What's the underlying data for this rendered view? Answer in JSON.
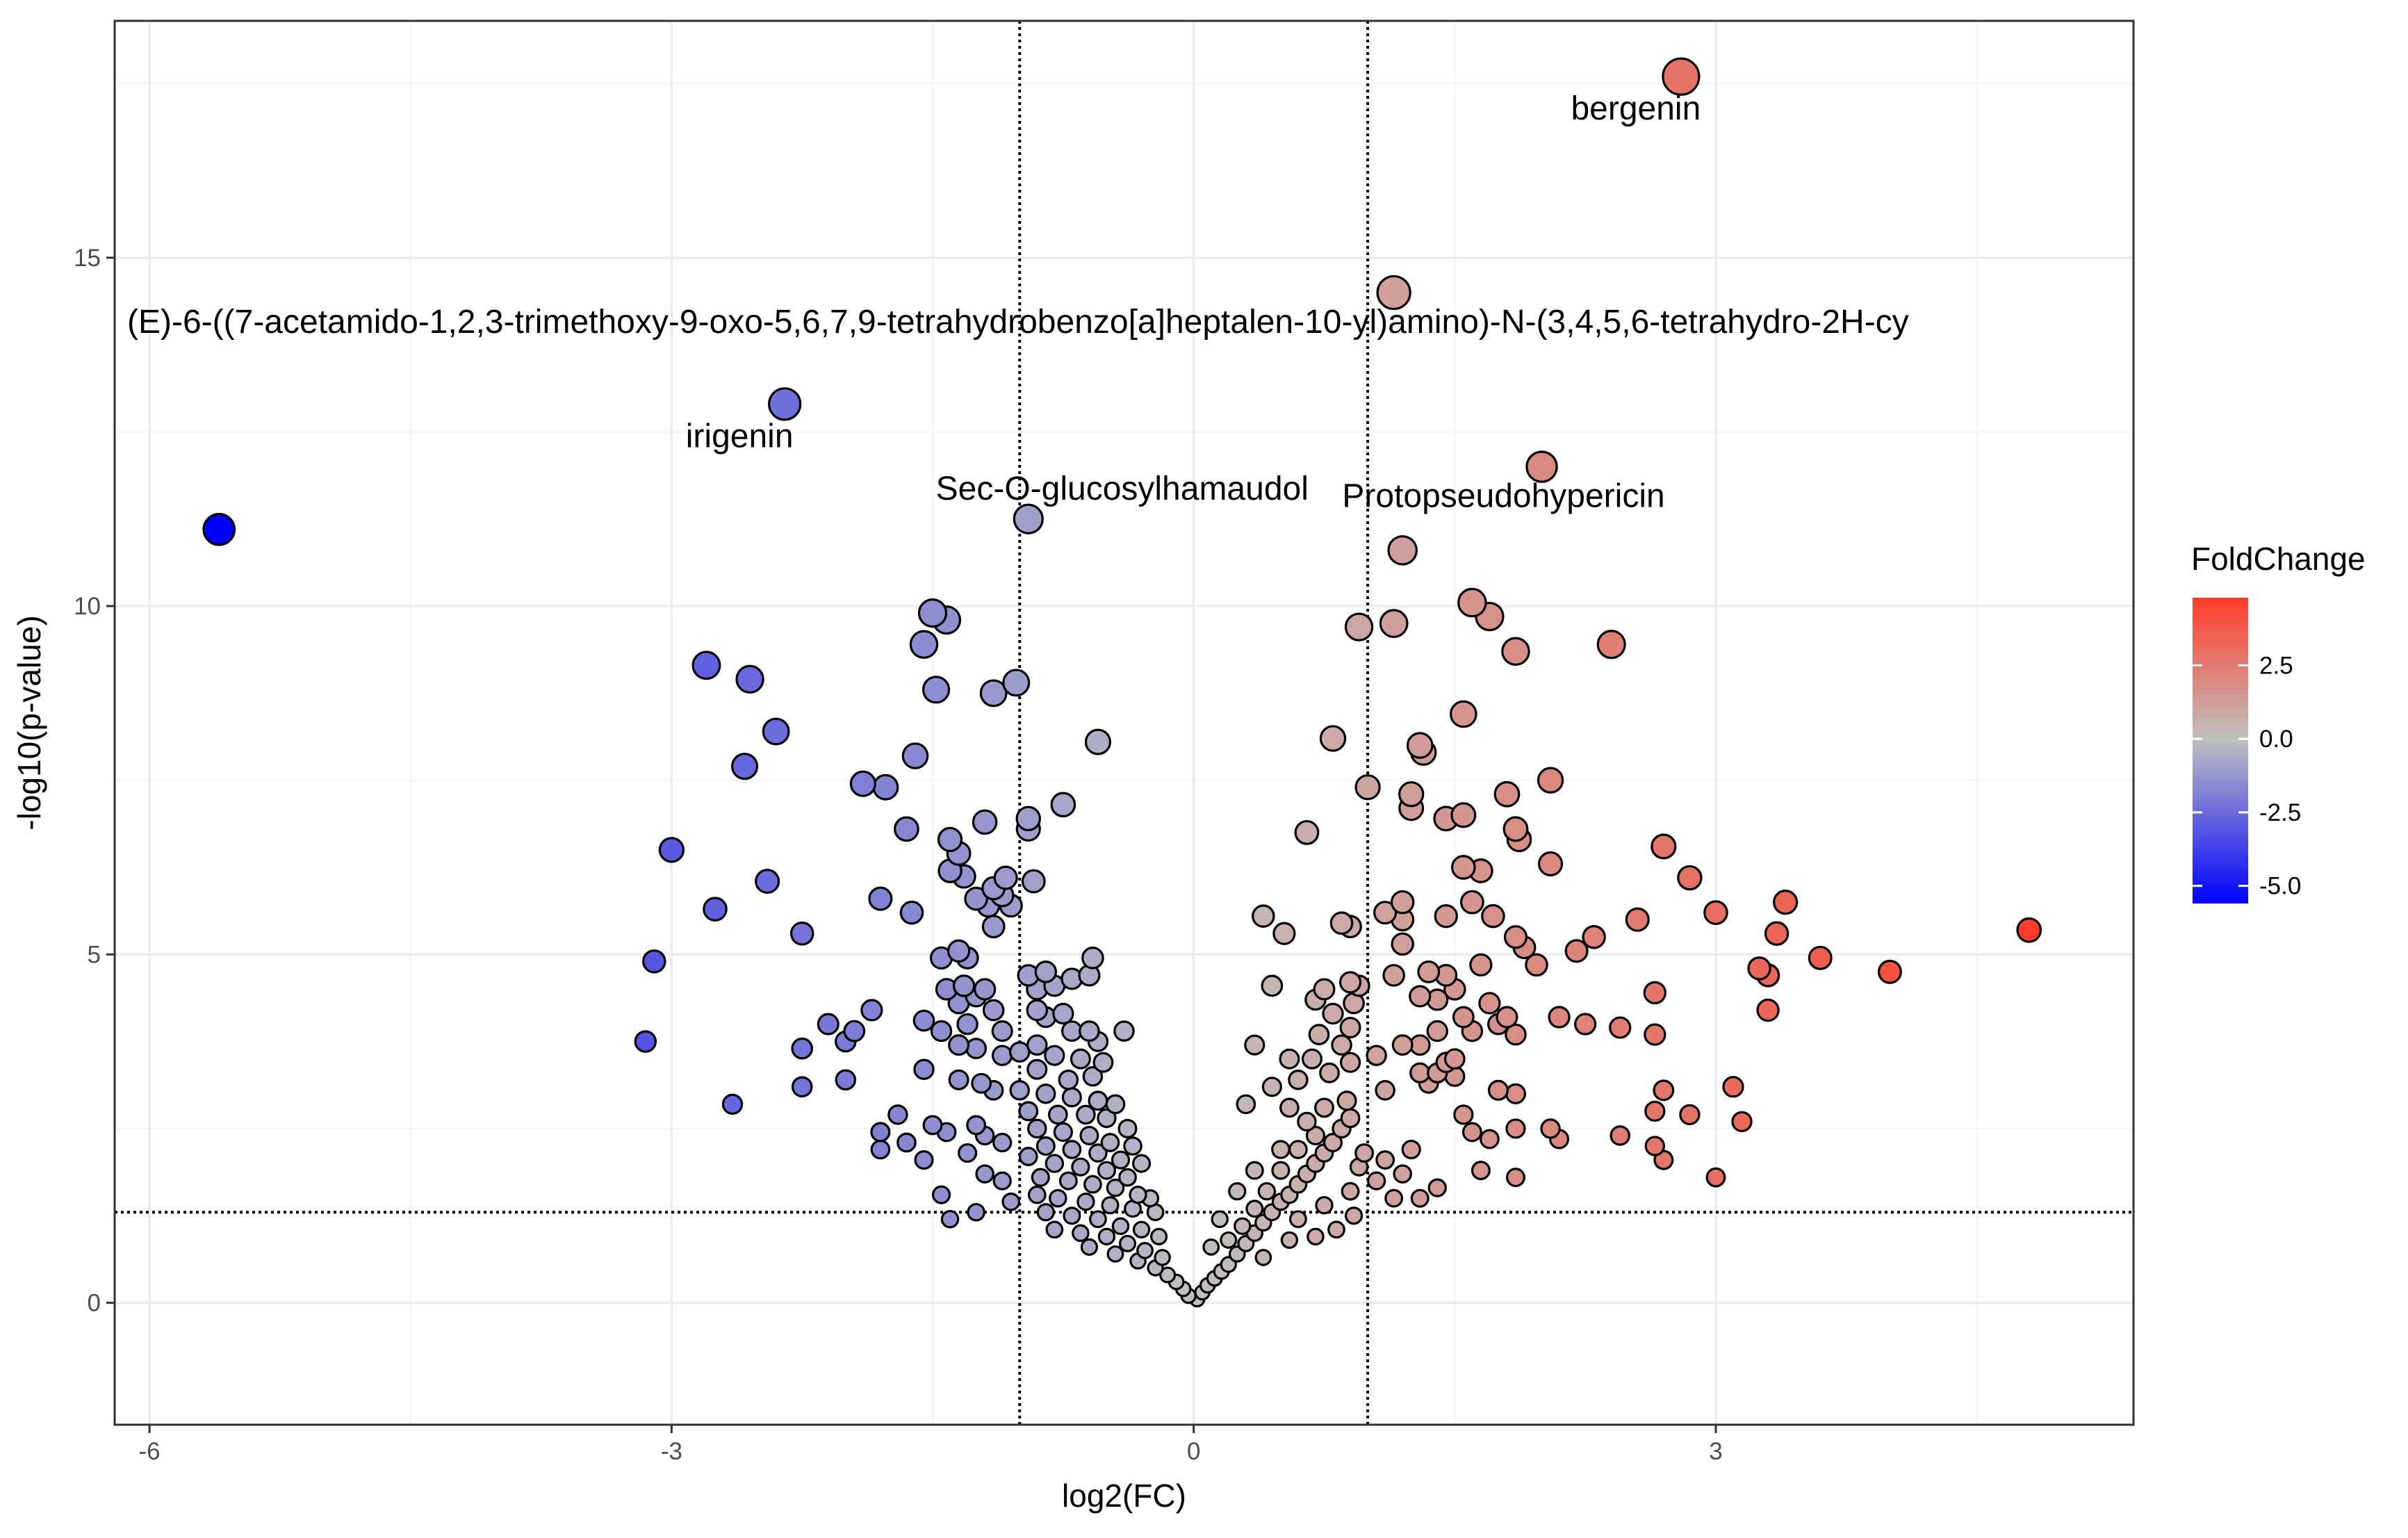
{
  "chart_data": {
    "type": "scatter",
    "title": "",
    "xlabel": "log2(FC)",
    "ylabel": "-log10(p-value)",
    "xlim": [
      -6.2,
      5.4
    ],
    "ylim": [
      -1.75,
      18.4
    ],
    "x_ticks": [
      -6,
      -3,
      0,
      3
    ],
    "y_ticks": [
      0,
      5,
      10,
      15
    ],
    "x_tick_labels": [
      "-6",
      "-3",
      "0",
      "3"
    ],
    "y_tick_labels": [
      "0",
      "5",
      "10",
      "15"
    ],
    "thresholds": {
      "x": [
        -1,
        1
      ],
      "y": 1.3
    },
    "grid": true,
    "legend": {
      "title": "FoldChange",
      "position": "right",
      "range": [
        -5.6,
        4.8
      ],
      "ticks": [
        2.5,
        0.0,
        -2.5,
        -5.0
      ],
      "tick_labels": [
        "2.5",
        "0.0",
        "-2.5",
        "-5.0"
      ],
      "colors": {
        "low": "#0000ff",
        "mid": "#c0c0c0",
        "high": "#ff3c28"
      }
    },
    "labeled_points": [
      {
        "label": "bergenin",
        "x": 2.8,
        "y": 17.6
      },
      {
        "label": "(E)-6-((7-acetamido-1,2,3-trimethoxy-9-oxo-5,6,7,9-tetrahydrobenzo[a]heptalen-10-yl)amino)-N-(3,4,5,6-tetrahydro-2H-cy",
        "x": 1.15,
        "y": 14.5
      },
      {
        "label": "irigenin",
        "x": -2.35,
        "y": 12.9
      },
      {
        "label": "Sec-O-glucosylhamaudol",
        "x": -0.95,
        "y": 11.25
      },
      {
        "label": "Protopseudohypericin",
        "x": 2.0,
        "y": 12.0
      }
    ],
    "points": [
      [
        -5.6,
        11.1
      ],
      [
        2.8,
        17.6
      ],
      [
        1.15,
        14.5
      ],
      [
        -2.35,
        12.9
      ],
      [
        -0.95,
        11.25
      ],
      [
        2.0,
        12.0
      ],
      [
        1.2,
        10.8
      ],
      [
        1.6,
        10.05
      ],
      [
        1.7,
        9.85
      ],
      [
        1.85,
        9.35
      ],
      [
        2.4,
        9.45
      ],
      [
        1.15,
        9.75
      ],
      [
        0.95,
        9.7
      ],
      [
        -1.5,
        9.9
      ],
      [
        -1.42,
        9.8
      ],
      [
        -1.55,
        9.45
      ],
      [
        -1.48,
        8.8
      ],
      [
        -1.15,
        8.75
      ],
      [
        -1.02,
        8.9
      ],
      [
        -2.8,
        9.15
      ],
      [
        -2.55,
        8.95
      ],
      [
        -2.4,
        8.2
      ],
      [
        -2.58,
        7.7
      ],
      [
        -1.6,
        7.85
      ],
      [
        -0.55,
        8.05
      ],
      [
        0.8,
        8.1
      ],
      [
        1.3,
        8.0
      ],
      [
        1.32,
        7.9
      ],
      [
        1.55,
        8.45
      ],
      [
        1.0,
        7.4
      ],
      [
        1.25,
        7.3
      ],
      [
        1.25,
        7.1
      ],
      [
        1.45,
        6.95
      ],
      [
        1.55,
        7.0
      ],
      [
        1.8,
        7.3
      ],
      [
        2.05,
        7.5
      ],
      [
        1.85,
        6.8
      ],
      [
        1.87,
        6.65
      ],
      [
        -1.9,
        7.45
      ],
      [
        -1.77,
        7.4
      ],
      [
        -1.65,
        6.8
      ],
      [
        -1.2,
        6.9
      ],
      [
        -0.95,
        6.95
      ],
      [
        -0.95,
        6.8
      ],
      [
        -0.75,
        7.15
      ],
      [
        0.65,
        6.75
      ],
      [
        2.7,
        6.55
      ],
      [
        2.85,
        6.1
      ],
      [
        2.05,
        6.3
      ],
      [
        1.55,
        6.25
      ],
      [
        1.65,
        6.2
      ],
      [
        -1.4,
        6.65
      ],
      [
        -1.35,
        6.45
      ],
      [
        -1.4,
        6.2
      ],
      [
        -1.32,
        6.12
      ],
      [
        -1.08,
        6.1
      ],
      [
        -0.92,
        6.05
      ],
      [
        -1.15,
        5.95
      ],
      [
        -3.0,
        6.5
      ],
      [
        -2.45,
        6.05
      ],
      [
        -2.75,
        5.65
      ],
      [
        -1.8,
        5.8
      ],
      [
        -1.62,
        5.6
      ],
      [
        -1.25,
        5.8
      ],
      [
        -1.18,
        5.7
      ],
      [
        -1.1,
        5.85
      ],
      [
        -1.05,
        5.7
      ],
      [
        1.2,
        5.75
      ],
      [
        1.6,
        5.75
      ],
      [
        1.72,
        5.55
      ],
      [
        1.45,
        5.55
      ],
      [
        1.1,
        5.6
      ],
      [
        1.2,
        5.5
      ],
      [
        3.0,
        5.6
      ],
      [
        3.4,
        5.75
      ],
      [
        3.35,
        5.3
      ],
      [
        2.55,
        5.5
      ],
      [
        2.3,
        5.25
      ],
      [
        0.4,
        5.55
      ],
      [
        0.52,
        5.3
      ],
      [
        0.85,
        5.45
      ],
      [
        0.9,
        5.4
      ],
      [
        1.2,
        5.15
      ],
      [
        1.85,
        5.25
      ],
      [
        1.9,
        5.1
      ],
      [
        -2.25,
        5.3
      ],
      [
        -1.15,
        5.4
      ],
      [
        -1.35,
        5.05
      ],
      [
        -1.3,
        4.95
      ],
      [
        -1.45,
        4.95
      ],
      [
        -3.1,
        4.9
      ],
      [
        2.2,
        5.05
      ],
      [
        1.97,
        4.85
      ],
      [
        3.25,
        4.8
      ],
      [
        3.3,
        4.7
      ],
      [
        3.6,
        4.95
      ],
      [
        4.0,
        4.75
      ],
      [
        4.8,
        5.35
      ],
      [
        -1.42,
        4.5
      ],
      [
        -1.32,
        4.55
      ],
      [
        -1.25,
        4.4
      ],
      [
        -1.35,
        4.3
      ],
      [
        -1.15,
        4.2
      ],
      [
        -1.2,
        4.5
      ],
      [
        0.45,
        4.55
      ],
      [
        0.7,
        4.35
      ],
      [
        0.9,
        4.6
      ],
      [
        1.15,
        4.7
      ],
      [
        1.3,
        4.4
      ],
      [
        1.4,
        4.35
      ],
      [
        1.5,
        4.5
      ],
      [
        1.7,
        4.3
      ],
      [
        1.8,
        4.1
      ],
      [
        1.55,
        4.1
      ],
      [
        1.35,
        4.75
      ],
      [
        1.45,
        4.7
      ],
      [
        1.65,
        4.85
      ],
      [
        -1.85,
        4.2
      ],
      [
        -2.1,
        4.0
      ],
      [
        -1.95,
        3.9
      ],
      [
        -2.0,
        3.75
      ],
      [
        -2.25,
        3.65
      ],
      [
        -1.55,
        4.05
      ],
      [
        -1.45,
        3.9
      ],
      [
        -1.3,
        4.0
      ],
      [
        -1.1,
        3.9
      ],
      [
        -1.0,
        3.6
      ],
      [
        -1.1,
        3.55
      ],
      [
        -1.25,
        3.65
      ],
      [
        -1.35,
        3.7
      ],
      [
        2.65,
        4.45
      ],
      [
        2.45,
        3.95
      ],
      [
        2.25,
        4.0
      ],
      [
        3.3,
        4.2
      ],
      [
        2.65,
        3.85
      ],
      [
        2.1,
        4.1
      ],
      [
        1.75,
        4.0
      ],
      [
        1.85,
        3.85
      ],
      [
        1.6,
        3.9
      ],
      [
        1.4,
        3.9
      ],
      [
        1.3,
        3.7
      ],
      [
        1.2,
        3.7
      ],
      [
        1.05,
        3.55
      ],
      [
        1.3,
        3.3
      ],
      [
        1.5,
        3.5
      ],
      [
        1.45,
        3.45
      ],
      [
        1.4,
        3.3
      ],
      [
        0.35,
        3.7
      ],
      [
        0.55,
        3.5
      ],
      [
        -3.15,
        3.75
      ],
      [
        -2.25,
        3.1
      ],
      [
        -2.0,
        3.2
      ],
      [
        -1.55,
        3.35
      ],
      [
        -1.35,
        3.2
      ],
      [
        -1.22,
        3.15
      ],
      [
        -1.15,
        3.05
      ],
      [
        -1.0,
        3.05
      ],
      [
        -1.7,
        2.7
      ],
      [
        -1.5,
        2.55
      ],
      [
        -1.42,
        2.45
      ],
      [
        -1.25,
        2.55
      ],
      [
        -1.2,
        2.4
      ],
      [
        -1.1,
        2.3
      ],
      [
        -1.3,
        2.15
      ],
      [
        -1.55,
        2.05
      ],
      [
        -1.65,
        2.3
      ],
      [
        -1.8,
        2.2
      ],
      [
        -1.8,
        2.45
      ],
      [
        -2.65,
        2.85
      ],
      [
        1.1,
        3.05
      ],
      [
        1.35,
        3.15
      ],
      [
        1.5,
        3.25
      ],
      [
        1.85,
        3.0
      ],
      [
        1.75,
        3.05
      ],
      [
        1.55,
        2.7
      ],
      [
        1.6,
        2.45
      ],
      [
        1.7,
        2.35
      ],
      [
        1.85,
        2.5
      ],
      [
        2.05,
        2.5
      ],
      [
        2.1,
        2.35
      ],
      [
        2.65,
        2.75
      ],
      [
        2.7,
        3.05
      ],
      [
        2.85,
        2.7
      ],
      [
        3.1,
        3.1
      ],
      [
        3.15,
        2.6
      ],
      [
        2.65,
        2.25
      ],
      [
        2.45,
        2.4
      ],
      [
        2.7,
        2.05
      ],
      [
        3.0,
        1.8
      ],
      [
        1.85,
        1.8
      ],
      [
        1.65,
        1.9
      ],
      [
        1.4,
        1.65
      ],
      [
        1.2,
        1.85
      ],
      [
        1.1,
        2.05
      ],
      [
        1.25,
        2.2
      ],
      [
        1.05,
        1.75
      ],
      [
        1.15,
        1.5
      ],
      [
        1.3,
        1.5
      ],
      [
        -1.2,
        1.85
      ],
      [
        -1.45,
        1.55
      ],
      [
        -1.1,
        1.75
      ],
      [
        -1.05,
        1.45
      ],
      [
        -1.25,
        1.3
      ],
      [
        -1.4,
        1.2
      ],
      [
        -0.95,
        4.7
      ],
      [
        -0.9,
        4.5
      ],
      [
        -0.85,
        4.75
      ],
      [
        -0.8,
        4.55
      ],
      [
        -0.7,
        4.65
      ],
      [
        -0.6,
        4.7
      ],
      [
        -0.58,
        4.95
      ],
      [
        -0.9,
        4.2
      ],
      [
        -0.85,
        4.1
      ],
      [
        -0.75,
        4.15
      ],
      [
        -0.7,
        3.9
      ],
      [
        -0.6,
        3.9
      ],
      [
        -0.55,
        3.75
      ],
      [
        -0.4,
        3.9
      ],
      [
        -0.9,
        3.7
      ],
      [
        -0.8,
        3.55
      ],
      [
        -0.65,
        3.5
      ],
      [
        -0.52,
        3.45
      ],
      [
        -0.9,
        3.35
      ],
      [
        -0.72,
        3.2
      ],
      [
        -0.58,
        3.25
      ],
      [
        -0.85,
        3.0
      ],
      [
        -0.7,
        2.95
      ],
      [
        -0.55,
        2.9
      ],
      [
        -0.45,
        2.85
      ],
      [
        -0.95,
        2.75
      ],
      [
        -0.78,
        2.7
      ],
      [
        -0.62,
        2.7
      ],
      [
        -0.5,
        2.65
      ],
      [
        -0.38,
        2.5
      ],
      [
        -0.9,
        2.5
      ],
      [
        -0.75,
        2.45
      ],
      [
        -0.6,
        2.4
      ],
      [
        -0.48,
        2.3
      ],
      [
        -0.35,
        2.25
      ],
      [
        -0.85,
        2.25
      ],
      [
        -0.7,
        2.2
      ],
      [
        -0.55,
        2.15
      ],
      [
        -0.42,
        2.05
      ],
      [
        -0.3,
        2.0
      ],
      [
        -0.95,
        2.1
      ],
      [
        -0.8,
        2.0
      ],
      [
        -0.65,
        1.95
      ],
      [
        -0.5,
        1.9
      ],
      [
        -0.38,
        1.8
      ],
      [
        -0.88,
        1.8
      ],
      [
        -0.72,
        1.75
      ],
      [
        -0.58,
        1.7
      ],
      [
        -0.45,
        1.65
      ],
      [
        -0.32,
        1.55
      ],
      [
        -0.25,
        1.5
      ],
      [
        -0.9,
        1.55
      ],
      [
        -0.78,
        1.5
      ],
      [
        -0.62,
        1.45
      ],
      [
        -0.48,
        1.4
      ],
      [
        -0.35,
        1.35
      ],
      [
        -0.22,
        1.3
      ],
      [
        -0.85,
        1.3
      ],
      [
        -0.7,
        1.25
      ],
      [
        -0.55,
        1.2
      ],
      [
        -0.42,
        1.1
      ],
      [
        -0.3,
        1.05
      ],
      [
        -0.2,
        0.95
      ],
      [
        -0.8,
        1.05
      ],
      [
        -0.65,
        1.0
      ],
      [
        -0.5,
        0.95
      ],
      [
        -0.38,
        0.85
      ],
      [
        -0.28,
        0.75
      ],
      [
        -0.18,
        0.65
      ],
      [
        -0.6,
        0.8
      ],
      [
        -0.45,
        0.7
      ],
      [
        -0.32,
        0.6
      ],
      [
        -0.22,
        0.5
      ],
      [
        -0.15,
        0.4
      ],
      [
        -0.1,
        0.3
      ],
      [
        -0.06,
        0.2
      ],
      [
        -0.03,
        0.1
      ],
      [
        0.02,
        0.05
      ],
      [
        0.05,
        0.15
      ],
      [
        0.08,
        0.25
      ],
      [
        0.12,
        0.35
      ],
      [
        0.16,
        0.45
      ],
      [
        0.2,
        0.55
      ],
      [
        0.25,
        0.7
      ],
      [
        0.3,
        0.85
      ],
      [
        0.2,
        0.9
      ],
      [
        0.35,
        1.0
      ],
      [
        0.28,
        1.1
      ],
      [
        0.4,
        1.15
      ],
      [
        0.45,
        1.3
      ],
      [
        0.35,
        1.35
      ],
      [
        0.5,
        1.45
      ],
      [
        0.55,
        1.55
      ],
      [
        0.42,
        1.6
      ],
      [
        0.6,
        1.7
      ],
      [
        0.65,
        1.85
      ],
      [
        0.5,
        1.9
      ],
      [
        0.7,
        2.0
      ],
      [
        0.75,
        2.15
      ],
      [
        0.6,
        2.2
      ],
      [
        0.8,
        2.3
      ],
      [
        0.7,
        2.4
      ],
      [
        0.85,
        2.5
      ],
      [
        0.65,
        2.6
      ],
      [
        0.9,
        2.65
      ],
      [
        0.75,
        2.8
      ],
      [
        0.88,
        2.9
      ],
      [
        0.55,
        2.8
      ],
      [
        0.3,
        2.85
      ],
      [
        0.45,
        3.1
      ],
      [
        0.6,
        3.2
      ],
      [
        0.78,
        3.3
      ],
      [
        0.9,
        3.45
      ],
      [
        0.68,
        3.5
      ],
      [
        0.85,
        3.7
      ],
      [
        0.72,
        3.85
      ],
      [
        0.9,
        3.95
      ],
      [
        0.8,
        4.15
      ],
      [
        0.92,
        4.3
      ],
      [
        0.75,
        4.5
      ],
      [
        0.95,
        4.55
      ],
      [
        0.5,
        2.2
      ],
      [
        0.35,
        1.9
      ],
      [
        0.25,
        1.6
      ],
      [
        0.15,
        1.2
      ],
      [
        0.1,
        0.8
      ],
      [
        0.6,
        1.2
      ],
      [
        0.75,
        1.4
      ],
      [
        0.9,
        1.6
      ],
      [
        0.92,
        1.25
      ],
      [
        0.82,
        1.05
      ],
      [
        0.7,
        0.95
      ],
      [
        0.55,
        0.9
      ],
      [
        0.4,
        0.65
      ],
      [
        0.95,
        1.95
      ],
      [
        0.98,
        2.15
      ]
    ]
  }
}
